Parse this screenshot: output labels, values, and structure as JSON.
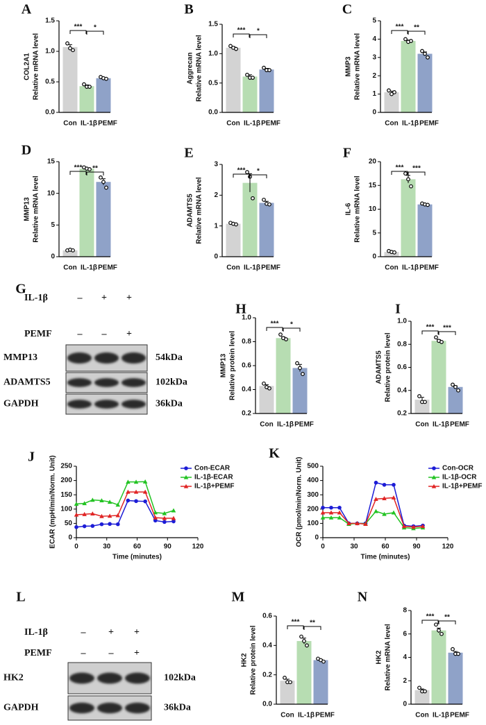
{
  "chart_data": [
    {
      "panel": "A",
      "type": "bar",
      "gene": "COL2A1",
      "ylabel": "Relative mRNA level",
      "categories": [
        "Con",
        "IL-1β",
        "PEMF"
      ],
      "colors": [
        "#d3d3d3",
        "#b7ddb2",
        "#8fa2c8"
      ],
      "values": [
        1.07,
        0.43,
        0.56
      ],
      "errors": [
        0.04,
        0.02,
        0.01
      ],
      "points": [
        [
          1.13,
          1.05,
          1.02
        ],
        [
          0.46,
          0.42,
          0.42
        ],
        [
          0.58,
          0.56,
          0.55
        ]
      ],
      "significance": [
        "***",
        "*"
      ],
      "ylim": [
        0,
        1.5
      ],
      "yticks": [
        {
          "value": 0,
          "label": "0.0"
        },
        0.5,
        {
          "value": 1,
          "label": "1.0"
        },
        1.5
      ]
    },
    {
      "panel": "B",
      "type": "bar",
      "gene": "Aggrecan",
      "ylabel": "Relative mRNA level",
      "categories": [
        "Con",
        "IL-1β",
        "PEMF"
      ],
      "colors": [
        "#d3d3d3",
        "#b7ddb2",
        "#8fa2c8"
      ],
      "values": [
        1.1,
        0.61,
        0.73
      ],
      "errors": [
        0.02,
        0.03,
        0.02
      ],
      "points": [
        [
          1.13,
          1.1,
          1.08
        ],
        [
          0.64,
          0.59,
          0.59
        ],
        [
          0.76,
          0.72,
          0.72
        ]
      ],
      "significance": [
        "***",
        "*"
      ],
      "ylim": [
        0,
        1.5
      ],
      "yticks": [
        {
          "value": 0,
          "label": "0.0"
        },
        0.5,
        {
          "value": 1,
          "label": "1.0"
        },
        1.5
      ]
    },
    {
      "panel": "C",
      "type": "bar",
      "gene": "MMP3",
      "ylabel": "Relative mRNA level",
      "categories": [
        "Con",
        "IL-1β",
        "PEMF"
      ],
      "colors": [
        "#d3d3d3",
        "#b7ddb2",
        "#8fa2c8"
      ],
      "values": [
        1.1,
        3.9,
        3.2
      ],
      "errors": [
        0.06,
        0.05,
        0.1
      ],
      "points": [
        [
          1.2,
          1.0,
          1.1
        ],
        [
          4.0,
          3.85,
          3.9
        ],
        [
          3.35,
          3.2,
          3.0
        ]
      ],
      "significance": [
        "***",
        "**"
      ],
      "ylim": [
        0,
        5
      ],
      "yticks": [
        0,
        1,
        2,
        3,
        4,
        5
      ]
    },
    {
      "panel": "D",
      "type": "bar",
      "gene": "MMP13",
      "ylabel": "Relative mRNA level",
      "categories": [
        "Con",
        "IL-1β",
        "PEMF"
      ],
      "colors": [
        "#d3d3d3",
        "#b7ddb2",
        "#8fa2c8"
      ],
      "values": [
        1.0,
        13.9,
        11.8
      ],
      "errors": [
        0.05,
        0.1,
        0.5
      ],
      "points": [
        [
          1.0,
          1.1,
          1.0
        ],
        [
          14.1,
          13.9,
          13.8
        ],
        [
          12.5,
          11.8,
          10.9
        ]
      ],
      "significance": [
        "***",
        "**"
      ],
      "ylim": [
        0,
        15
      ],
      "yticks": [
        0,
        5,
        10,
        15
      ]
    },
    {
      "panel": "E",
      "type": "bar",
      "gene": "ADAMTS5",
      "ylabel": "Relative mRNA level",
      "categories": [
        "Con",
        "IL-1β",
        "PEMF"
      ],
      "colors": [
        "#d3d3d3",
        "#b7ddb2",
        "#8fa2c8"
      ],
      "values": [
        1.07,
        2.4,
        1.75
      ],
      "errors": [
        0.02,
        0.3,
        0.05
      ],
      "points": [
        [
          1.1,
          1.07,
          1.05
        ],
        [
          2.75,
          2.6,
          1.9
        ],
        [
          1.85,
          1.72,
          1.7
        ]
      ],
      "significance": [
        "***",
        "*"
      ],
      "ylim": [
        0,
        3
      ],
      "yticks": [
        0,
        1,
        2,
        3
      ]
    },
    {
      "panel": "F",
      "type": "bar",
      "gene": "IL-6",
      "ylabel": "Relative mRNA level",
      "categories": [
        "Con",
        "IL-1β",
        "PEMF"
      ],
      "colors": [
        "#d3d3d3",
        "#b7ddb2",
        "#8fa2c8"
      ],
      "values": [
        1.0,
        16.3,
        11.0
      ],
      "errors": [
        0.1,
        0.8,
        0.1
      ],
      "points": [
        [
          1.2,
          1.0,
          0.9
        ],
        [
          17.5,
          16.3,
          14.8
        ],
        [
          11.2,
          11.0,
          10.9
        ]
      ],
      "significance": [
        "***",
        "***"
      ],
      "ylim": [
        0,
        20
      ],
      "yticks": [
        0,
        5,
        10,
        15,
        20
      ]
    },
    {
      "panel": "H",
      "type": "bar",
      "gene": "MMP13",
      "ylabel": "Relative protein level",
      "categories": [
        "Con",
        "IL-1β",
        "PEMF"
      ],
      "colors": [
        "#d3d3d3",
        "#b7ddb2",
        "#8fa2c8"
      ],
      "values": [
        0.43,
        0.83,
        0.58
      ],
      "errors": [
        0.01,
        0.01,
        0.03
      ],
      "points": [
        [
          0.45,
          0.42,
          0.41
        ],
        [
          0.86,
          0.83,
          0.82
        ],
        [
          0.62,
          0.58,
          0.53
        ]
      ],
      "significance": [
        "***",
        "*"
      ],
      "ylim": [
        0.2,
        1
      ],
      "yticks": [
        0.2,
        0.4,
        0.6,
        0.8,
        {
          "value": 1,
          "label": "1.0"
        }
      ]
    },
    {
      "panel": "I",
      "type": "bar",
      "gene": "ADAMTS5",
      "ylabel": "Relative protein level",
      "categories": [
        "Con",
        "IL-1β",
        "PEMF"
      ],
      "colors": [
        "#d3d3d3",
        "#b7ddb2",
        "#8fa2c8"
      ],
      "values": [
        0.32,
        0.83,
        0.43
      ],
      "errors": [
        0.02,
        0.01,
        0.01
      ],
      "points": [
        [
          0.35,
          0.3,
          0.3
        ],
        [
          0.86,
          0.83,
          0.82
        ],
        [
          0.45,
          0.43,
          0.4
        ]
      ],
      "significance": [
        "***",
        "***"
      ],
      "ylim": [
        0.2,
        1
      ],
      "yticks": [
        0.2,
        0.4,
        0.6,
        0.8,
        {
          "value": 1,
          "label": "1.0"
        }
      ]
    },
    {
      "panel": "J",
      "type": "line",
      "ylabel": "ECAR (mpH/min/Norm. Unit)",
      "xlabel": "Time (minutes)",
      "x": [
        0,
        8,
        16,
        25,
        33,
        41,
        51,
        59,
        68,
        78,
        87,
        96
      ],
      "series": [
        {
          "name": "Con-ECAR",
          "color": "#1c1cd6",
          "marker": "circle",
          "values": [
            37,
            40,
            41,
            47,
            48,
            47,
            130,
            128,
            127,
            60,
            55,
            57
          ]
        },
        {
          "name": "IL-1β-ECAR",
          "color": "#22c322",
          "marker": "triangle",
          "values": [
            118,
            120,
            132,
            130,
            125,
            115,
            195,
            195,
            196,
            88,
            85,
            95
          ]
        },
        {
          "name": "IL-1β+PEMF",
          "color": "#e02424",
          "marker": "triangle",
          "values": [
            80,
            82,
            84,
            75,
            76,
            78,
            160,
            160,
            160,
            70,
            68,
            68
          ]
        }
      ],
      "xlim": [
        0,
        120
      ],
      "xticks": [
        0,
        30,
        60,
        90,
        120
      ],
      "ylim": [
        0,
        250
      ],
      "yticks": [
        0,
        50,
        100,
        150,
        200,
        250
      ]
    },
    {
      "panel": "K",
      "type": "line",
      "ylabel": "OCR (pmol/min/Norm. Unit)",
      "xlabel": "Time (minutes)",
      "x": [
        0,
        8,
        16,
        25,
        33,
        41,
        51,
        59,
        68,
        78,
        87,
        96
      ],
      "series": [
        {
          "name": "Con-OCR",
          "color": "#1c1cd6",
          "marker": "circle",
          "values": [
            210,
            210,
            210,
            100,
            100,
            100,
            385,
            370,
            370,
            85,
            80,
            85
          ]
        },
        {
          "name": "IL-1β-OCR",
          "color": "#22c322",
          "marker": "triangle",
          "values": [
            140,
            140,
            140,
            95,
            100,
            98,
            185,
            165,
            175,
            70,
            65,
            70
          ]
        },
        {
          "name": "IL-1β+PEMF",
          "color": "#e02424",
          "marker": "triangle",
          "values": [
            175,
            175,
            175,
            100,
            100,
            95,
            270,
            275,
            280,
            80,
            75,
            80
          ]
        }
      ],
      "xlim": [
        0,
        120
      ],
      "xticks": [
        0,
        30,
        60,
        90,
        120
      ],
      "ylim": [
        0,
        500
      ],
      "yticks": [
        0,
        100,
        200,
        300,
        400,
        500
      ]
    },
    {
      "panel": "M",
      "type": "bar",
      "gene": "HK2",
      "ylabel": "Relative protein level",
      "categories": [
        "Con",
        "IL-1β",
        "PEMF"
      ],
      "colors": [
        "#d3d3d3",
        "#b7ddb2",
        "#8fa2c8"
      ],
      "values": [
        0.16,
        0.43,
        0.3
      ],
      "errors": [
        0.01,
        0.02,
        0.005
      ],
      "points": [
        [
          0.18,
          0.15,
          0.15
        ],
        [
          0.46,
          0.43,
          0.4
        ],
        [
          0.31,
          0.3,
          0.29
        ]
      ],
      "significance": [
        "***",
        "**"
      ],
      "ylim": [
        0,
        0.6
      ],
      "yticks": [
        {
          "value": 0,
          "label": "0.0"
        },
        0.2,
        0.4,
        0.6
      ]
    },
    {
      "panel": "N",
      "type": "bar",
      "gene": "HK2",
      "ylabel": "Relative mRNA level",
      "categories": [
        "Con",
        "IL-1β",
        "PEMF"
      ],
      "colors": [
        "#d3d3d3",
        "#b7ddb2",
        "#8fa2c8"
      ],
      "values": [
        1.2,
        6.3,
        4.4
      ],
      "errors": [
        0.1,
        0.2,
        0.1
      ],
      "points": [
        [
          1.4,
          1.1,
          1.1
        ],
        [
          6.8,
          6.3,
          6.0
        ],
        [
          4.7,
          4.3,
          4.3
        ]
      ],
      "significance": [
        "***",
        "**"
      ],
      "ylim": [
        0,
        8
      ],
      "yticks": [
        0,
        2,
        4,
        6,
        8
      ]
    }
  ],
  "blots": [
    {
      "panel": "G",
      "treatments": [
        {
          "name": "IL-1β",
          "signs": [
            "–",
            "+",
            "+"
          ]
        },
        {
          "name": "PEMF",
          "signs": [
            "–",
            "–",
            "+"
          ]
        }
      ],
      "bands": [
        {
          "name": "MMP13",
          "size": "54kDa"
        },
        {
          "name": "ADAMTS5",
          "size": "102kDa"
        },
        {
          "name": "GAPDH",
          "size": "36kDa"
        }
      ]
    },
    {
      "panel": "L",
      "treatments": [
        {
          "name": "IL-1β",
          "signs": [
            "–",
            "+",
            "+"
          ]
        },
        {
          "name": "PEMF",
          "signs": [
            "–",
            "–",
            "+"
          ]
        }
      ],
      "bands": [
        {
          "name": "HK2",
          "size": "102kDa"
        },
        {
          "name": "GAPDH",
          "size": "36kDa"
        }
      ]
    }
  ]
}
